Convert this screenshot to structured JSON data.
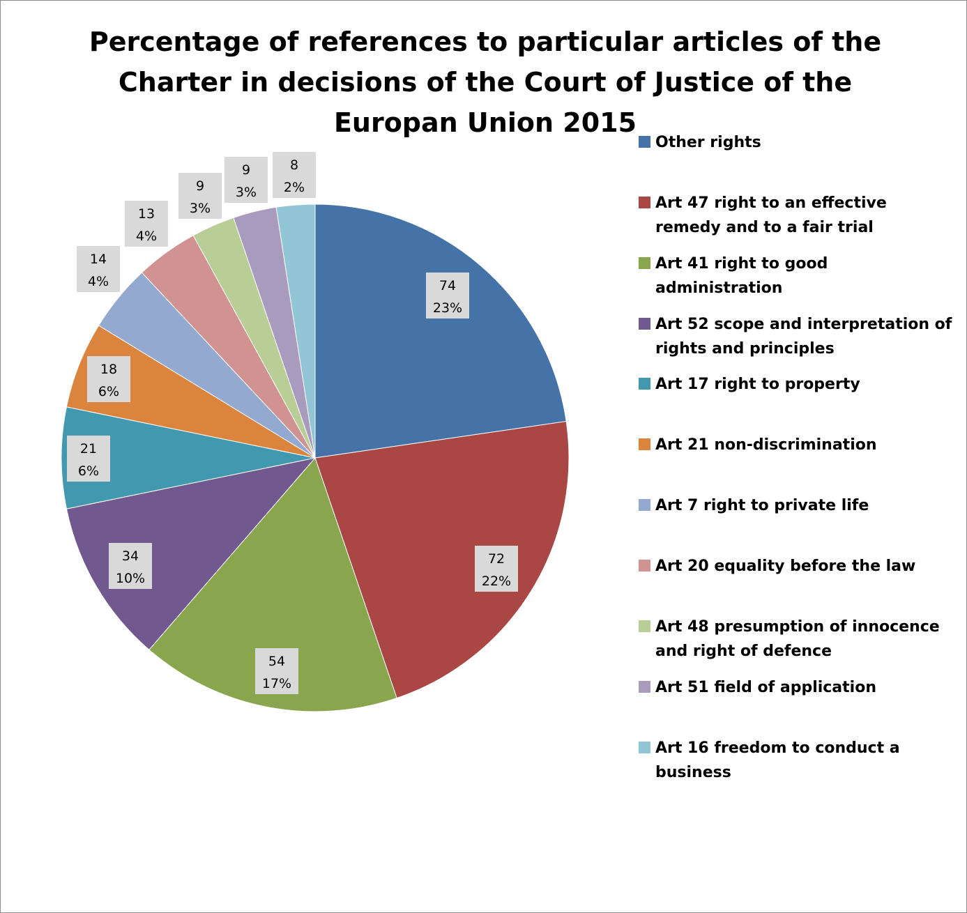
{
  "chart_data": {
    "type": "pie",
    "title": "Percentage of references to particular articles of the\nCharter in decisions of the Court of Justice of the\nEuropan Union 2015",
    "legend_position": "right",
    "start_angle_deg": 0,
    "direction": "clockwise",
    "slices": [
      {
        "label": "Other rights",
        "value": 74,
        "percent_label": "23%",
        "color": "#4572a7"
      },
      {
        "label": "Art 47 right to an effective remedy and to a fair trial",
        "value": 72,
        "percent_label": "22%",
        "color": "#aa4643"
      },
      {
        "label": "Art 41 right to good administration",
        "value": 54,
        "percent_label": "17%",
        "color": "#89a54e"
      },
      {
        "label": "Art 52 scope and interpretation of rights and principles",
        "value": 34,
        "percent_label": "10%",
        "color": "#71588f"
      },
      {
        "label": "Art 17 right to property",
        "value": 21,
        "percent_label": "6%",
        "color": "#4198af"
      },
      {
        "label": "Art 21 non-discrimination",
        "value": 18,
        "percent_label": "6%",
        "color": "#db843d"
      },
      {
        "label": "Art 7 right to private life",
        "value": 14,
        "percent_label": "4%",
        "color": "#93a9cf"
      },
      {
        "label": "Art 20 equality before the law",
        "value": 13,
        "percent_label": "4%",
        "color": "#d19392"
      },
      {
        "label": "Art 48 presumption of innocence and right of defence",
        "value": 9,
        "percent_label": "3%",
        "color": "#b9cd96"
      },
      {
        "label": "Art 51 field of application",
        "value": 9,
        "percent_label": "3%",
        "color": "#a99bbd"
      },
      {
        "label": "Art 16 freedom to conduct a business",
        "value": 8,
        "percent_label": "2%",
        "color": "#92c5d6"
      }
    ]
  }
}
